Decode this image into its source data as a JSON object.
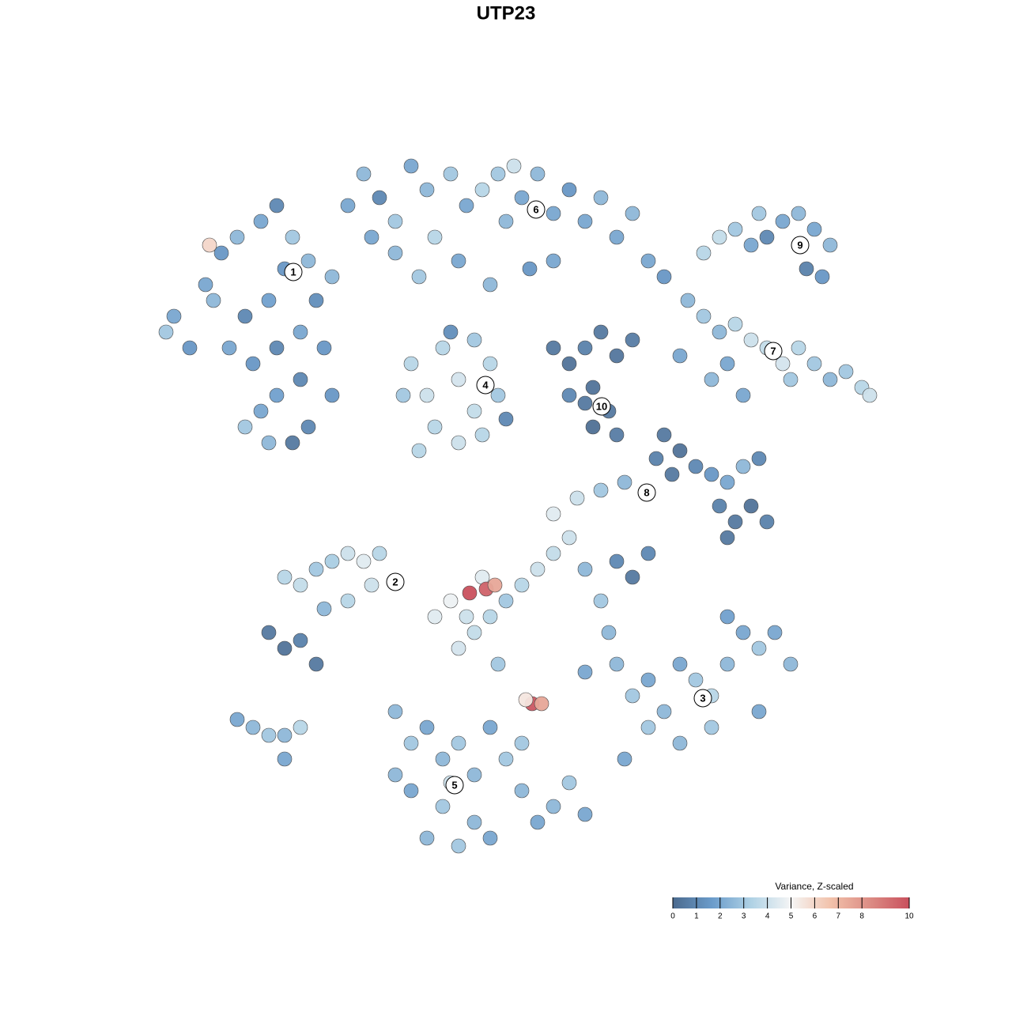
{
  "chart_data": {
    "type": "scatter",
    "title": "UTP23",
    "xlim": [
      0,
      128
    ],
    "ylim": [
      128,
      0
    ],
    "x": [
      22,
      24,
      21,
      26,
      28,
      30,
      33,
      35,
      37,
      39,
      36,
      34,
      31,
      29,
      32,
      35,
      38,
      40,
      42,
      41,
      38,
      35,
      33,
      31,
      34,
      37,
      39,
      42,
      27,
      26.5,
      44,
      46,
      48,
      50,
      52,
      54,
      55,
      57,
      59,
      61,
      63,
      64,
      66,
      68,
      70,
      72,
      74,
      76,
      78,
      80,
      82,
      84,
      50,
      53,
      58,
      62,
      67,
      70,
      47,
      65,
      52,
      54,
      56,
      58,
      60,
      62,
      63,
      55,
      58,
      61,
      51,
      64,
      53,
      57,
      60,
      70,
      72,
      74,
      76,
      78,
      80,
      75,
      77,
      75,
      78,
      74,
      72,
      89,
      91,
      93,
      95,
      97,
      99,
      101,
      103,
      105,
      104,
      102,
      96,
      87,
      89,
      91,
      93,
      95,
      97,
      99,
      101,
      103,
      105,
      107,
      109,
      110,
      100,
      86,
      90,
      92,
      94,
      84,
      86,
      85,
      83,
      88,
      90,
      92,
      94,
      96,
      91,
      93,
      95,
      97,
      92,
      76,
      79,
      73,
      70,
      36,
      38,
      40,
      42,
      44,
      46,
      48,
      47,
      44,
      41,
      34,
      36,
      38,
      40,
      55,
      57,
      59,
      58,
      60,
      62,
      64,
      66,
      68,
      70,
      72,
      74,
      76,
      78,
      80,
      82,
      61,
      63,
      59.4,
      61.5,
      62.6,
      67.3,
      68.5,
      66.5,
      78,
      80,
      82,
      84,
      86,
      88,
      90,
      92,
      94,
      96,
      98,
      100,
      90,
      86,
      82,
      79,
      77,
      74,
      96,
      92,
      50,
      52,
      54,
      56,
      58,
      60,
      62,
      64,
      66,
      68,
      70,
      72,
      74,
      60,
      56,
      52,
      54,
      58,
      62,
      50,
      66,
      57,
      30,
      32,
      34,
      36,
      38,
      36
    ],
    "y": [
      40,
      44,
      42,
      36,
      32,
      30,
      28,
      26,
      30,
      33,
      34,
      38,
      40,
      44,
      46,
      44,
      42,
      38,
      35,
      44,
      48,
      50,
      52,
      54,
      56,
      56,
      54,
      50,
      38,
      31,
      26,
      22,
      25,
      28,
      21,
      24,
      30,
      22,
      26,
      24,
      22,
      28,
      25,
      22,
      27,
      24,
      28,
      25,
      30,
      27,
      33,
      35,
      32,
      35,
      33,
      36,
      34,
      33,
      30,
      21,
      46,
      50,
      44,
      48,
      52,
      46,
      50,
      54,
      56,
      55,
      50,
      53,
      57,
      42,
      43,
      44,
      46,
      44,
      42,
      45,
      43,
      49,
      52,
      54,
      55,
      51,
      50,
      32,
      30,
      29,
      31,
      30,
      28,
      27,
      29,
      31,
      35,
      34,
      27,
      38,
      40,
      42,
      41,
      43,
      44,
      46,
      44,
      46,
      48,
      47,
      49,
      50,
      48,
      45,
      48,
      46,
      50,
      55,
      57,
      60,
      58,
      59,
      60,
      61,
      59,
      58,
      64,
      66,
      64,
      66,
      68,
      62,
      61,
      63,
      65,
      73,
      74,
      72,
      71,
      70,
      71,
      70,
      74,
      76,
      77,
      80,
      82,
      81,
      84,
      78,
      76,
      78,
      82,
      80,
      78,
      76,
      74,
      72,
      70,
      68,
      72,
      76,
      71,
      73,
      70,
      73,
      84,
      75,
      74.5,
      74,
      89,
      89,
      88.5,
      84,
      88,
      86,
      90,
      84,
      86,
      88,
      84,
      80,
      82,
      80,
      84,
      92,
      94,
      92,
      96,
      80,
      85,
      90,
      78,
      90,
      94,
      92,
      96,
      94,
      98,
      92,
      96,
      100,
      104,
      102,
      99,
      103,
      104,
      102,
      100,
      106,
      107,
      106,
      98,
      94,
      99,
      91,
      92,
      93,
      93,
      92,
      96
    ],
    "values": [
      2,
      1.5,
      3,
      2,
      1.5,
      2.5,
      2,
      1,
      3,
      2.5,
      1.5,
      1.8,
      1,
      2,
      1.5,
      1,
      2,
      1.2,
      2.5,
      1.5,
      1,
      1.8,
      2,
      3,
      2.5,
      0.5,
      1,
      1.5,
      2.5,
      6,
      2,
      2.5,
      1,
      3,
      2,
      2.5,
      3.5,
      3,
      2,
      3.5,
      3,
      2.5,
      2,
      2.5,
      2,
      1.5,
      2,
      2.5,
      2,
      2.5,
      2,
      1.5,
      2.5,
      3,
      2,
      2.5,
      1.5,
      2,
      2,
      4,
      3.5,
      4,
      3.5,
      4.2,
      3.8,
      3.5,
      3,
      3.5,
      4,
      3.5,
      3,
      1,
      3.5,
      1.2,
      3,
      0.5,
      0.3,
      0.8,
      0.5,
      0.4,
      0.6,
      0.3,
      0.5,
      0.2,
      0.6,
      0.5,
      1,
      3.5,
      3.8,
      3,
      2,
      1,
      2,
      2.5,
      2,
      2.5,
      1.5,
      0.8,
      3,
      2.5,
      3,
      2.5,
      3.5,
      4,
      3.8,
      4.2,
      3.5,
      3,
      2.5,
      3,
      3.5,
      4,
      3,
      2,
      2.5,
      2,
      2,
      0.5,
      0.3,
      0.5,
      0.8,
      1,
      1.5,
      2,
      2.5,
      1,
      0.8,
      0.5,
      0.3,
      0.8,
      0.5,
      3,
      2.5,
      4,
      4.5,
      3.5,
      3.8,
      3,
      3.2,
      4,
      4.5,
      3.5,
      4,
      3.5,
      2.5,
      0.5,
      0.3,
      0.8,
      0.5,
      4.5,
      4.8,
      4,
      4.2,
      3.8,
      3.5,
      3,
      3.5,
      4,
      3.8,
      4,
      2.5,
      3,
      1,
      0.5,
      1,
      4.5,
      3,
      10,
      9.5,
      7.5,
      9.8,
      7.5,
      5.5,
      2.5,
      3,
      2,
      2.5,
      2,
      3,
      3.5,
      2.5,
      2,
      3,
      2,
      2.5,
      3,
      2.5,
      3,
      2,
      2.5,
      2,
      2,
      1.8,
      2.5,
      3,
      2,
      2.5,
      3,
      2.5,
      2,
      3,
      2.5,
      2,
      2.5,
      3,
      2,
      2.5,
      3,
      2,
      2.5,
      3,
      2,
      2.5,
      3,
      4,
      2,
      2.5,
      3,
      2.5,
      3.5,
      2
    ],
    "cluster_labels": [
      {
        "label": "1",
        "x": 37.1,
        "y": 34.4
      },
      {
        "label": "6",
        "x": 67.8,
        "y": 26.5
      },
      {
        "label": "9",
        "x": 101.2,
        "y": 31
      },
      {
        "label": "4",
        "x": 61.4,
        "y": 48.7
      },
      {
        "label": "10",
        "x": 76.1,
        "y": 51.4
      },
      {
        "label": "7",
        "x": 97.8,
        "y": 44.4
      },
      {
        "label": "8",
        "x": 81.8,
        "y": 62.3
      },
      {
        "label": "2",
        "x": 50,
        "y": 73.6
      },
      {
        "label": "3",
        "x": 88.9,
        "y": 88.3
      },
      {
        "label": "5",
        "x": 57.5,
        "y": 99.3
      }
    ],
    "colorbar": {
      "title": "Variance, Z-scaled",
      "clim": [
        0,
        10
      ],
      "ticks": [
        0,
        1,
        2,
        3,
        4,
        5,
        6,
        7,
        8,
        10
      ],
      "colors": [
        "#4b6a8e",
        "#6b9ccb",
        "#b0d2e5",
        "#f5f5f5",
        "#f2c2ab",
        "#dc8c84",
        "#c9505d"
      ]
    }
  }
}
